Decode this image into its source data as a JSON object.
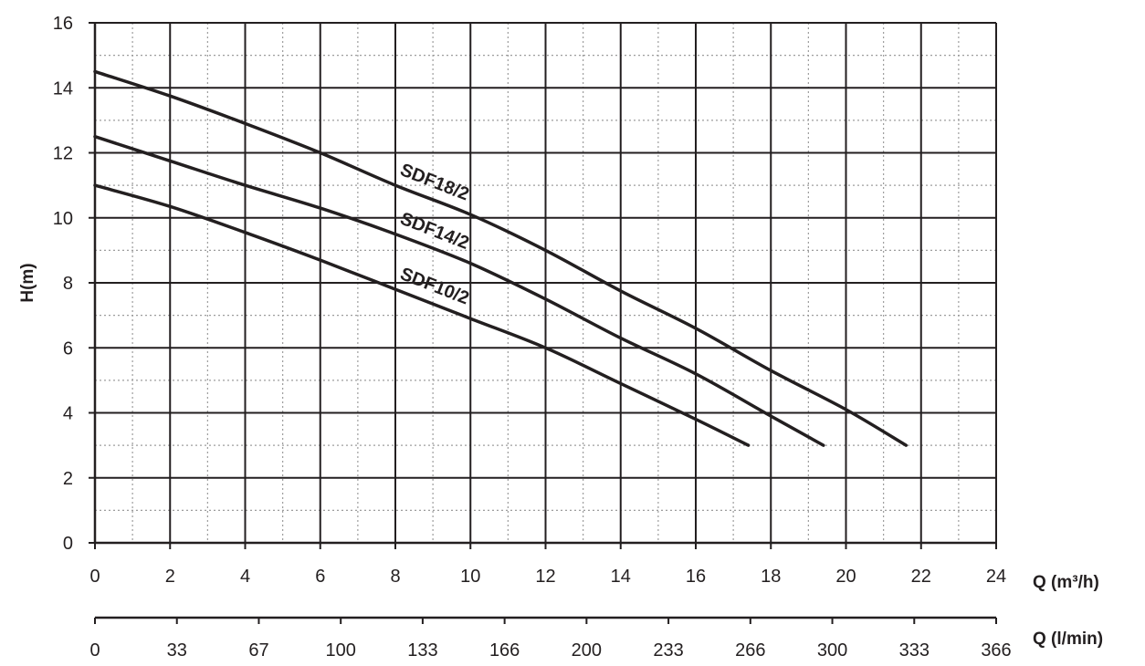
{
  "chart_data": {
    "type": "line",
    "title": "",
    "ylabel": "H(m)",
    "xlabel": "Q (m³/h)",
    "xlabel_secondary": "Q (l/min)",
    "xlim": [
      0,
      24
    ],
    "ylim": [
      0,
      16
    ],
    "x_ticks": [
      "0",
      "2",
      "4",
      "6",
      "8",
      "10",
      "12",
      "14",
      "16",
      "18",
      "20",
      "22",
      "24"
    ],
    "y_ticks": [
      "0",
      "2",
      "4",
      "6",
      "8",
      "10",
      "12",
      "14",
      "16"
    ],
    "x_secondary_ticks": [
      "0",
      "33",
      "67",
      "100",
      "133",
      "166",
      "200",
      "233",
      "266",
      "300",
      "333",
      "366"
    ],
    "grid": true,
    "colors": {
      "line": "#231f20",
      "grid_major": "#231f20",
      "grid_minor": "#9d9d9d"
    },
    "series": [
      {
        "name": "SDF18/2",
        "points": [
          [
            0,
            14.5
          ],
          [
            2,
            13.75
          ],
          [
            4,
            12.9
          ],
          [
            6,
            12.0
          ],
          [
            8,
            11.0
          ],
          [
            10,
            10.1
          ],
          [
            12,
            9.0
          ],
          [
            14,
            7.75
          ],
          [
            16,
            6.6
          ],
          [
            18,
            5.3
          ],
          [
            20,
            4.1
          ],
          [
            21.6,
            3.0
          ]
        ]
      },
      {
        "name": "SDF14/2",
        "points": [
          [
            0,
            12.5
          ],
          [
            2,
            11.75
          ],
          [
            4,
            11.0
          ],
          [
            6,
            10.3
          ],
          [
            8,
            9.5
          ],
          [
            10,
            8.6
          ],
          [
            12,
            7.5
          ],
          [
            14,
            6.3
          ],
          [
            16,
            5.2
          ],
          [
            18,
            3.9
          ],
          [
            19.4,
            3.0
          ]
        ]
      },
      {
        "name": "SDF10/2",
        "points": [
          [
            0,
            11.0
          ],
          [
            2,
            10.35
          ],
          [
            4,
            9.55
          ],
          [
            6,
            8.7
          ],
          [
            8,
            7.8
          ],
          [
            10,
            6.9
          ],
          [
            12,
            6.0
          ],
          [
            14,
            4.9
          ],
          [
            16,
            3.8
          ],
          [
            17.4,
            3.0
          ]
        ]
      }
    ]
  }
}
